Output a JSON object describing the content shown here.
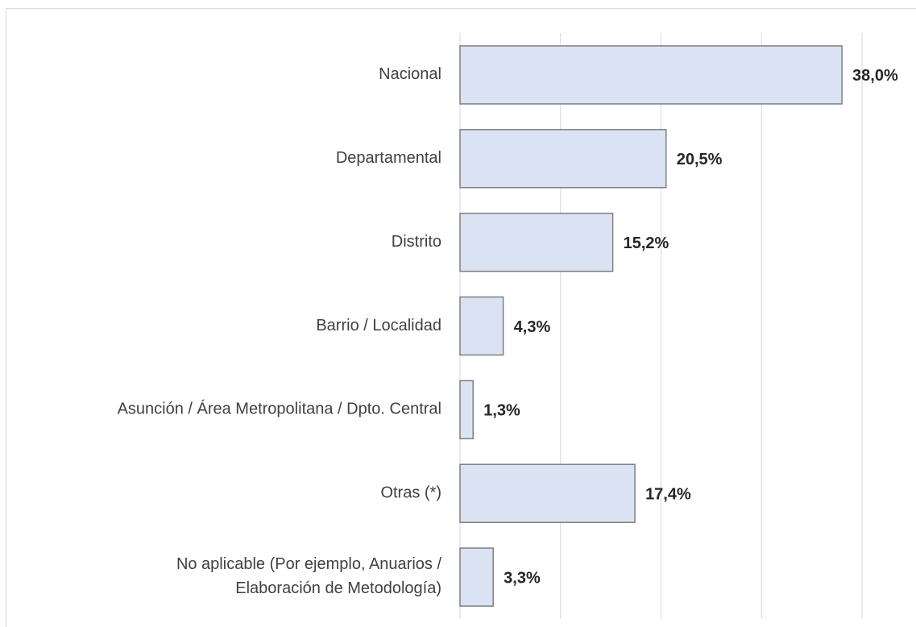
{
  "chart_data": {
    "type": "barh",
    "categories": [
      "Nacional",
      "Departamental",
      "Distrito",
      "Barrio / Localidad",
      "Asunción / Área Metropolitana / Dpto. Central",
      "Otras (*)",
      "No aplicable (Por ejemplo, Anuarios /\nElaboración de Metodología)"
    ],
    "values": [
      38.0,
      20.5,
      15.2,
      4.3,
      1.3,
      17.4,
      3.3
    ],
    "value_labels": [
      "38,0%",
      "20,5%",
      "15,2%",
      "4,3%",
      "1,3%",
      "17,4%",
      "3,3%"
    ],
    "color": "#dae3f3",
    "xlim": [
      0,
      40
    ],
    "xticks": [
      0,
      10,
      20,
      30,
      40
    ],
    "grid": true
  }
}
